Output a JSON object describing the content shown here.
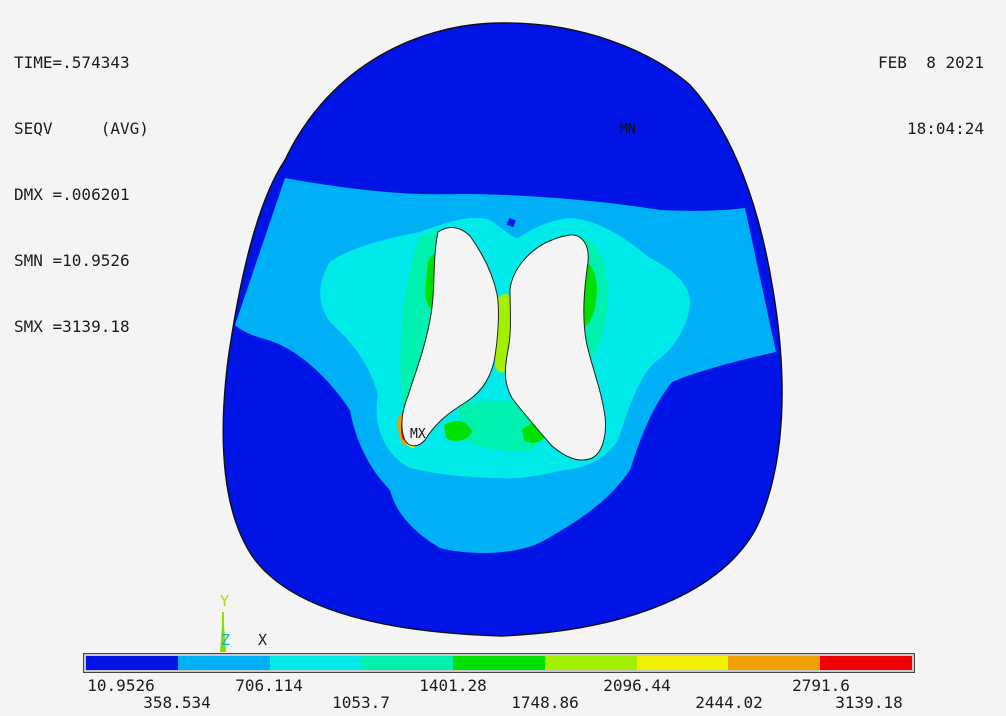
{
  "info": {
    "time": "TIME=.574343",
    "result": "SEQV     (AVG)",
    "dmx": "DMX =.006201",
    "smn": "SMN =10.9526",
    "smx": "SMX =3139.18"
  },
  "stamp": {
    "date": "FEB  8 2021",
    "time": "18:04:24"
  },
  "markers": {
    "min": "MN",
    "max": "MX"
  },
  "triad": {
    "y": "Y",
    "z": "Z",
    "x": "X"
  },
  "colors": {
    "band1": "#0014e6",
    "band2": "#00b0f6",
    "band3": "#00eaea",
    "band4": "#00f0b0",
    "band5": "#00e000",
    "band6": "#a0f000",
    "band7": "#f0f000",
    "band8": "#f0a000",
    "band9": "#f00000",
    "hole": "#f4f4f4",
    "background": "#f4f4f4"
  },
  "legend": {
    "colors": [
      "#0014e6",
      "#00b0f6",
      "#00eaea",
      "#00f0b0",
      "#00e000",
      "#a0f000",
      "#f0f000",
      "#f0a000",
      "#f00000"
    ],
    "values": [
      "10.9526",
      "358.534",
      "706.114",
      "1053.7",
      "1401.28",
      "1748.86",
      "2096.44",
      "2444.02",
      "2791.6",
      "3139.18"
    ]
  }
}
